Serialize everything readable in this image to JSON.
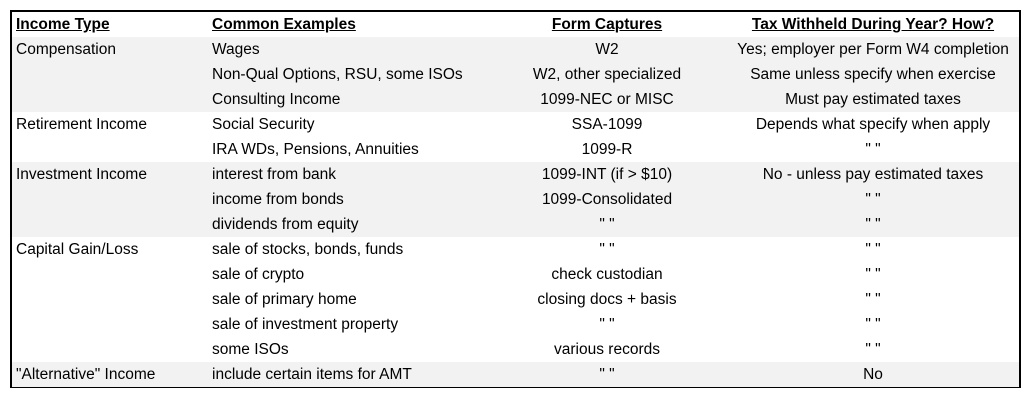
{
  "headers": [
    "Income Type",
    "Common Examples",
    "Form Captures",
    "Tax Withheld During Year?  How?"
  ],
  "colors": {
    "shaded_row": "#f2f2f2",
    "border": "#000000"
  },
  "groups": [
    {
      "type": "Compensation",
      "shaded": true,
      "rows": [
        [
          "Wages",
          "W2",
          "Yes; employer per Form W4 completion"
        ],
        [
          "Non-Qual Options, RSU, some ISOs",
          "W2, other specialized",
          "Same unless specify when exercise"
        ],
        [
          "Consulting Income",
          "1099-NEC or MISC",
          "Must pay estimated taxes"
        ]
      ]
    },
    {
      "type": "Retirement Income",
      "shaded": false,
      "rows": [
        [
          "Social Security",
          "SSA-1099",
          "Depends what specify when apply"
        ],
        [
          "IRA WDs, Pensions, Annuities",
          "1099-R",
          "\"  \""
        ]
      ]
    },
    {
      "type": "Investment Income",
      "shaded": true,
      "rows": [
        [
          "interest from bank",
          "1099-INT (if > $10)",
          "No - unless pay estimated taxes"
        ],
        [
          "income from bonds",
          "1099-Consolidated",
          "\"  \""
        ],
        [
          "dividends from equity",
          "\"  \"",
          "\"  \""
        ]
      ]
    },
    {
      "type": "Capital Gain/Loss",
      "shaded": false,
      "rows": [
        [
          "sale of stocks, bonds, funds",
          "\"  \"",
          "\"  \""
        ],
        [
          "sale of crypto",
          "check custodian",
          "\"  \""
        ],
        [
          "sale of primary home",
          "closing docs + basis",
          "\"  \""
        ],
        [
          "sale of investment property",
          "\"  \"",
          "\"  \""
        ],
        [
          "some ISOs",
          "various records",
          "\"  \""
        ]
      ]
    },
    {
      "type": "\"Alternative\" Income",
      "shaded": true,
      "rows": [
        [
          "include certain items for AMT",
          "\"  \"",
          "No"
        ]
      ]
    }
  ]
}
